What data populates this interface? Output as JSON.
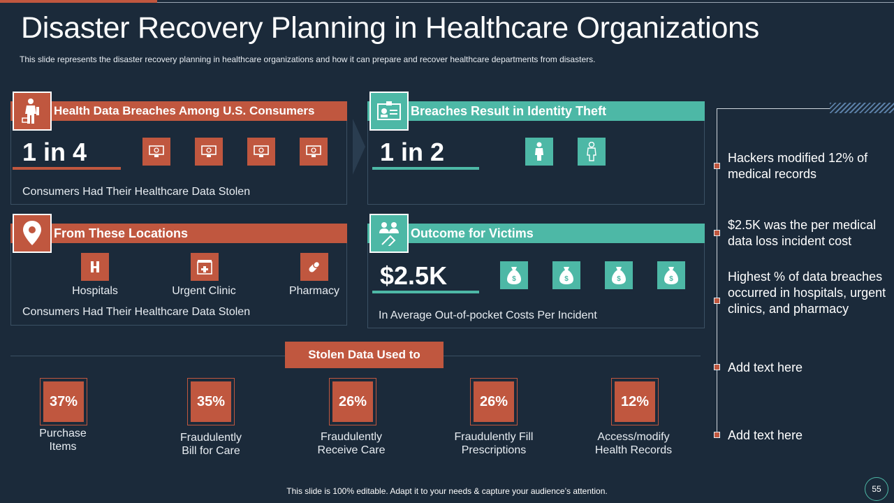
{
  "title": "Disaster Recovery Planning in Healthcare Organizations",
  "subtitle": "This slide represents the disaster recovery  planning in healthcare organizations and how it can prepare and recover healthcare departments from disasters.",
  "panels": {
    "breaches": {
      "header": "Health Data Breaches Among U.S. Consumers",
      "stat": "1 in 4",
      "caption": "Consumers Had Their Healthcare  Data Stolen"
    },
    "identity": {
      "header": "Breaches Result in Identity Theft",
      "stat": "1 in 2"
    },
    "locations": {
      "header": "From These Locations",
      "items": [
        {
          "label": "Hospitals",
          "icon": "hospital-icon"
        },
        {
          "label": "Urgent Clinic",
          "icon": "clinic-icon"
        },
        {
          "label": "Pharmacy",
          "icon": "pill-icon"
        }
      ],
      "caption": "Consumers Had Their Healthcare  Data Stolen"
    },
    "outcome": {
      "header": "Outcome for Victims",
      "stat": "$2.5K",
      "caption": "In Average Out-of-pocket  Costs Per Incident"
    }
  },
  "stolen": {
    "label": "Stolen Data Used to",
    "items": [
      {
        "pct": "37%",
        "label1": "Purchase",
        "label2": "Items"
      },
      {
        "pct": "35%",
        "label1": "Fraudulently",
        "label2": "Bill for Care"
      },
      {
        "pct": "26%",
        "label1": "Fraudulently",
        "label2": "Receive Care"
      },
      {
        "pct": "26%",
        "label1": "Fraudulently  Fill",
        "label2": "Prescriptions"
      },
      {
        "pct": "12%",
        "label1": "Access/modify",
        "label2": "Health Records"
      }
    ]
  },
  "timeline": [
    "Hackers modified 12% of medical records",
    "$2.5K was the per medical data loss incident cost",
    "Highest % of data breaches occurred in hospitals, urgent clinics, and pharmacy",
    "Add text here",
    "Add text here"
  ],
  "footer": "This slide is 100% editable. Adapt it to your needs & capture your audience’s attention.",
  "page_number": "55",
  "colors": {
    "accent_red": "#c0573f",
    "accent_teal": "#4db8a6",
    "background": "#1b2a3a"
  }
}
